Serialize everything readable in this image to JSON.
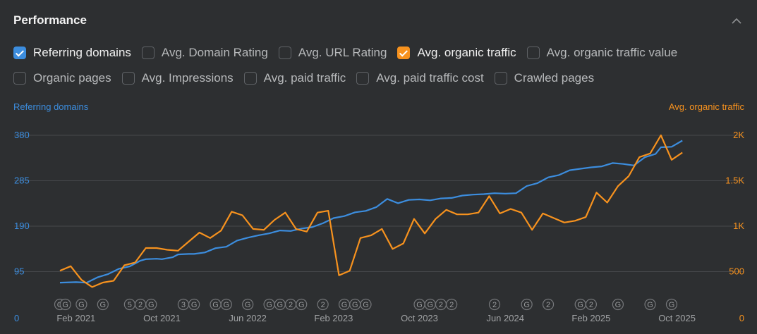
{
  "header": {
    "title": "Performance"
  },
  "colors": {
    "blue": "#3c8dde",
    "orange": "#f7921e",
    "grid": "#46484b",
    "tick": "#a0a2a4"
  },
  "checkbox_rows": [
    [
      {
        "label": "Referring domains",
        "checked": true,
        "color": "#3c8dde"
      },
      {
        "label": "Avg. Domain Rating",
        "checked": false
      },
      {
        "label": "Avg. URL Rating",
        "checked": false
      },
      {
        "label": "Avg. organic traffic",
        "checked": true,
        "color": "#f7921e"
      },
      {
        "label": "Avg. organic traffic value",
        "checked": false
      }
    ],
    [
      {
        "label": "Organic pages",
        "checked": false
      },
      {
        "label": "Avg. Impressions",
        "checked": false
      },
      {
        "label": "Avg. paid traffic",
        "checked": false
      },
      {
        "label": "Avg. paid traffic cost",
        "checked": false
      },
      {
        "label": "Crawled pages",
        "checked": false
      }
    ]
  ],
  "chart_data": {
    "type": "line",
    "ylabel_left": "Referring domains",
    "ylabel_right": "Avg. organic traffic",
    "ylim_left": [
      0,
      380
    ],
    "ylim_right": [
      0,
      2000
    ],
    "yticks_left": [
      "0",
      "95",
      "190",
      "285",
      "380"
    ],
    "yticks_right": [
      "0",
      "500",
      "1K",
      "1.5K",
      "2K"
    ],
    "x_tick_labels": [
      "Feb 2021",
      "Oct 2021",
      "Jun 2022",
      "Feb 2023",
      "Oct 2023",
      "Jun 2024",
      "Feb 2025",
      "Oct 2025"
    ],
    "x_tick_index": [
      3,
      19,
      35,
      51,
      67,
      83,
      99,
      115
    ],
    "x_count": 120,
    "grid": true,
    "series": [
      {
        "name": "Referring domains",
        "axis": "left",
        "x": [
          0,
          3,
          5,
          7,
          9,
          11,
          13,
          15,
          16,
          18,
          19,
          21,
          22,
          24,
          25,
          27,
          29,
          31,
          33,
          35,
          37,
          39,
          41,
          43,
          45,
          47,
          49,
          51,
          53,
          55,
          57,
          59,
          61,
          63,
          65,
          67,
          69,
          71,
          73,
          75,
          77,
          79,
          81,
          83,
          85,
          87,
          89,
          91,
          93,
          95,
          97,
          99,
          101,
          103,
          105,
          107,
          109,
          111,
          112,
          114,
          116
        ],
        "values": [
          72,
          73,
          72,
          83,
          90,
          101,
          106,
          118,
          121,
          122,
          121,
          125,
          131,
          132,
          132,
          135,
          144,
          147,
          160,
          166,
          171,
          175,
          181,
          180,
          185,
          188,
          196,
          207,
          211,
          219,
          222,
          230,
          247,
          238,
          245,
          246,
          244,
          248,
          249,
          254,
          256,
          257,
          259,
          258,
          259,
          274,
          280,
          292,
          297,
          307,
          310,
          313,
          315,
          322,
          320,
          317,
          334,
          341,
          355,
          356,
          369
        ]
      },
      {
        "name": "Avg. organic traffic",
        "axis": "right",
        "x": [
          0,
          2,
          4,
          6,
          8,
          10,
          12,
          14,
          16,
          18,
          20,
          22,
          24,
          26,
          28,
          30,
          32,
          34,
          36,
          38,
          40,
          42,
          44,
          46,
          48,
          50,
          52,
          54,
          56,
          58,
          60,
          62,
          64,
          66,
          68,
          70,
          72,
          74,
          76,
          78,
          80,
          82,
          84,
          86,
          88,
          90,
          92,
          94,
          96,
          98,
          100,
          102,
          104,
          106,
          108,
          110,
          112,
          114,
          116
        ],
        "values": [
          510,
          560,
          410,
          330,
          380,
          400,
          570,
          600,
          760,
          760,
          740,
          730,
          830,
          930,
          870,
          950,
          1160,
          1120,
          970,
          960,
          1070,
          1150,
          970,
          940,
          1150,
          1170,
          460,
          510,
          870,
          900,
          970,
          750,
          810,
          1080,
          920,
          1080,
          1180,
          1130,
          1130,
          1150,
          1330,
          1140,
          1190,
          1150,
          960,
          1140,
          1090,
          1040,
          1060,
          1100,
          1370,
          1260,
          1440,
          1550,
          1760,
          1800,
          2000,
          1730,
          1810
        ]
      }
    ],
    "annotations": [
      {
        "i": 0,
        "label": "G"
      },
      {
        "i": 1,
        "label": "G"
      },
      {
        "i": 4,
        "label": "G"
      },
      {
        "i": 8,
        "label": "G"
      },
      {
        "i": 13,
        "label": "5"
      },
      {
        "i": 15,
        "label": "2"
      },
      {
        "i": 17,
        "label": "G"
      },
      {
        "i": 23,
        "label": "3"
      },
      {
        "i": 25,
        "label": "G"
      },
      {
        "i": 29,
        "label": "G"
      },
      {
        "i": 31,
        "label": "G"
      },
      {
        "i": 35,
        "label": "G"
      },
      {
        "i": 39,
        "label": "G"
      },
      {
        "i": 41,
        "label": "G"
      },
      {
        "i": 43,
        "label": "2"
      },
      {
        "i": 45,
        "label": "G"
      },
      {
        "i": 49,
        "label": "2"
      },
      {
        "i": 53,
        "label": "G"
      },
      {
        "i": 55,
        "label": "G"
      },
      {
        "i": 57,
        "label": "G"
      },
      {
        "i": 67,
        "label": "G"
      },
      {
        "i": 69,
        "label": "G"
      },
      {
        "i": 71,
        "label": "2"
      },
      {
        "i": 73,
        "label": "2"
      },
      {
        "i": 81,
        "label": "2"
      },
      {
        "i": 87,
        "label": "G"
      },
      {
        "i": 91,
        "label": "2"
      },
      {
        "i": 97,
        "label": "G"
      },
      {
        "i": 99,
        "label": "2"
      },
      {
        "i": 104,
        "label": "G"
      },
      {
        "i": 110,
        "label": "G"
      },
      {
        "i": 114,
        "label": "G"
      }
    ]
  }
}
